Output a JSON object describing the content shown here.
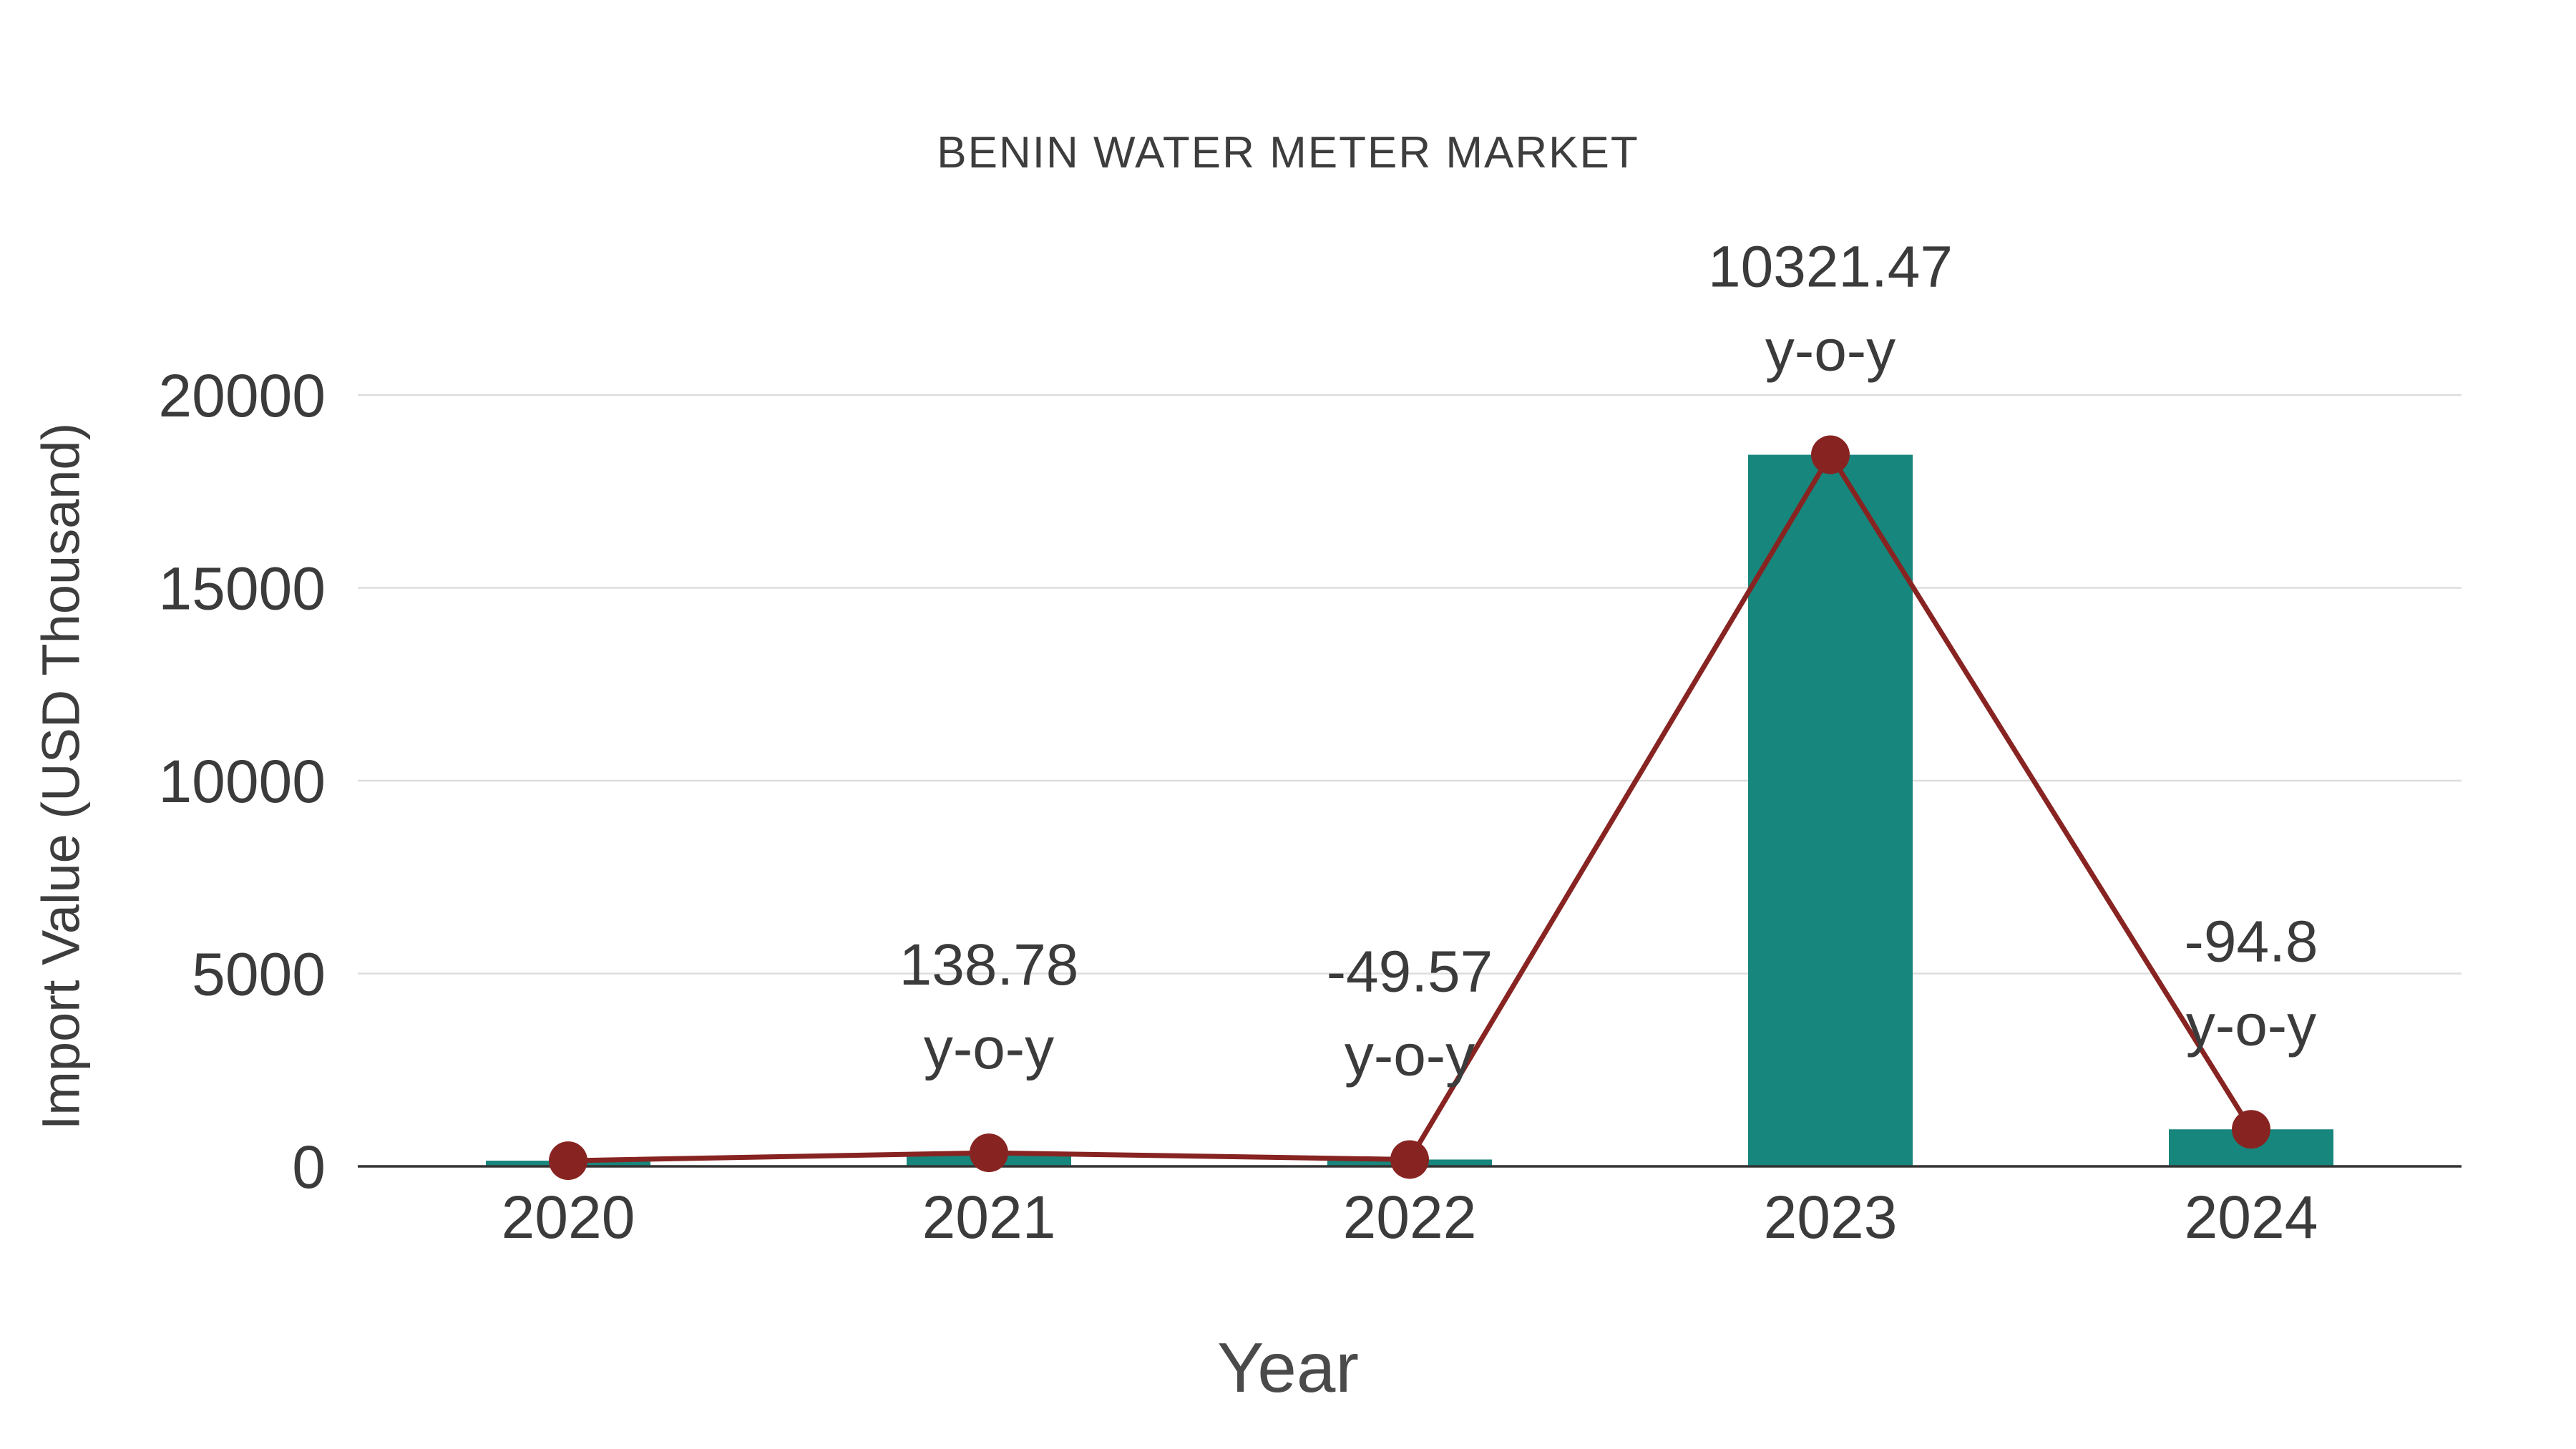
{
  "title": "BENIN WATER METER MARKET",
  "chart_data": {
    "type": "bar",
    "title": "BENIN WATER METER MARKET",
    "xlabel": "Year",
    "ylabel": "Import Value (USD Thousand)",
    "categories": [
      "2020",
      "2021",
      "2022",
      "2023",
      "2024"
    ],
    "series": [
      {
        "name": "Import Value",
        "type": "bar",
        "values": [
          147,
          351,
          177,
          18450,
          960
        ],
        "color": "#17867C"
      },
      {
        "name": "Y-o-Y Trend",
        "type": "line",
        "values": [
          147,
          351,
          177,
          18450,
          960
        ],
        "color": "#872422"
      }
    ],
    "annotations": [
      {
        "category": "2021",
        "lines": [
          "138.78",
          "y-o-y"
        ]
      },
      {
        "category": "2022",
        "lines": [
          "-49.57",
          "y-o-y"
        ]
      },
      {
        "category": "2023",
        "lines": [
          "10321.47",
          "y-o-y"
        ]
      },
      {
        "category": "2024",
        "lines": [
          "-94.8",
          "y-o-y"
        ]
      }
    ],
    "ylim": [
      0,
      20000
    ],
    "yticks": [
      0,
      5000,
      10000,
      15000,
      20000
    ],
    "grid": true,
    "legend_position": "none"
  },
  "colors": {
    "bar": "#17867C",
    "line": "#872422",
    "marker": "#872422",
    "grid": "#dddddd",
    "axis": "#333333",
    "text": "#3b3b3b"
  }
}
